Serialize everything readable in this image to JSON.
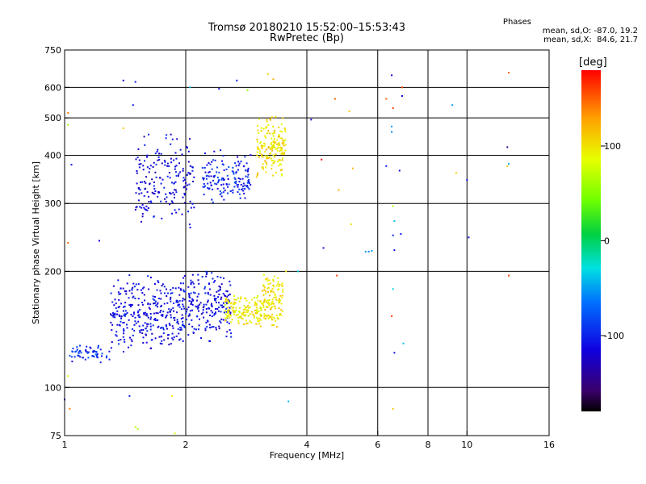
{
  "title_line1": "Tromsø 20180210 15:52:00–15:53:43",
  "title_line2": "RwPretec (Bp)",
  "stats": {
    "heading": "Phases",
    "line_o": "mean, sd,O: -87.0, 19.2",
    "line_x": "mean, sd,X:  84.6, 21.7"
  },
  "colorbar": {
    "unit": "[deg]",
    "range": [
      -180,
      180
    ],
    "ticks": [
      100,
      0,
      -100
    ],
    "tick_labels": [
      "100",
      "0",
      "-100"
    ]
  },
  "chart_data": {
    "type": "scatter",
    "title": "Tromsø 20180210 15:52:00–15:53:43",
    "subtitle": "RwPretec (Bp)",
    "xlabel": "Frequency [MHz]",
    "ylabel": "Stationary phase Virtual Height [km]",
    "x_scale": "log",
    "y_scale": "log",
    "xlim": [
      1,
      16
    ],
    "ylim": [
      75,
      750
    ],
    "x_ticks": [
      1,
      2,
      4,
      6,
      8,
      10,
      16
    ],
    "x_tick_labels": [
      "1",
      "2",
      "4",
      "6",
      "8",
      "10",
      "16"
    ],
    "y_ticks": [
      75,
      100,
      200,
      300,
      400,
      500,
      600,
      750
    ],
    "y_tick_labels": [
      "75",
      "100",
      "200",
      "300",
      "400",
      "500",
      "600",
      "750"
    ],
    "grid": true,
    "color_variable": "phase [deg]",
    "clusters": [
      {
        "f": [
          1.02,
          1.3
        ],
        "h": [
          115,
          130
        ],
        "phase": -95,
        "count": 60
      },
      {
        "f": [
          1.3,
          2.0
        ],
        "h": [
          122,
          200
        ],
        "phase": -110,
        "count": 330
      },
      {
        "f": [
          2.0,
          2.6
        ],
        "h": [
          130,
          205
        ],
        "phase": -112,
        "count": 190
      },
      {
        "f": [
          2.5,
          3.1
        ],
        "h": [
          140,
          175
        ],
        "phase": 95,
        "count": 150
      },
      {
        "f": [
          3.1,
          3.5
        ],
        "h": [
          140,
          200
        ],
        "phase": 100,
        "count": 120
      },
      {
        "f": [
          1.5,
          2.1
        ],
        "h": [
          255,
          470
        ],
        "phase": -115,
        "count": 190
      },
      {
        "f": [
          2.2,
          2.9
        ],
        "h": [
          290,
          420
        ],
        "phase": -100,
        "count": 150
      },
      {
        "f": [
          3.0,
          3.55
        ],
        "h": [
          340,
          520
        ],
        "phase": 100,
        "count": 170
      }
    ],
    "points": [
      {
        "x": 1.4,
        "y": 625,
        "phase": -115
      },
      {
        "x": 1.5,
        "y": 620,
        "phase": -110
      },
      {
        "x": 1.48,
        "y": 540,
        "phase": -105
      },
      {
        "x": 1.02,
        "y": 480,
        "phase": 60
      },
      {
        "x": 1.02,
        "y": 515,
        "phase": 140
      },
      {
        "x": 1.04,
        "y": 378,
        "phase": -110
      },
      {
        "x": 1.02,
        "y": 237,
        "phase": 150
      },
      {
        "x": 1.22,
        "y": 240,
        "phase": -115
      },
      {
        "x": 1.02,
        "y": 107,
        "phase": 80
      },
      {
        "x": 1.0,
        "y": 93,
        "phase": -100
      },
      {
        "x": 1.03,
        "y": 88,
        "phase": 140
      },
      {
        "x": 1.45,
        "y": 95,
        "phase": -100
      },
      {
        "x": 1.5,
        "y": 79,
        "phase": 70
      },
      {
        "x": 1.52,
        "y": 78,
        "phase": 60
      },
      {
        "x": 1.85,
        "y": 95,
        "phase": 90
      },
      {
        "x": 1.88,
        "y": 76,
        "phase": 85
      },
      {
        "x": 1.4,
        "y": 470,
        "phase": 110
      },
      {
        "x": 1.52,
        "y": 395,
        "phase": -100
      },
      {
        "x": 2.05,
        "y": 600,
        "phase": -40
      },
      {
        "x": 2.42,
        "y": 595,
        "phase": -110
      },
      {
        "x": 2.68,
        "y": 625,
        "phase": -100
      },
      {
        "x": 2.85,
        "y": 590,
        "phase": 50
      },
      {
        "x": 3.2,
        "y": 650,
        "phase": 110
      },
      {
        "x": 3.3,
        "y": 630,
        "phase": 120
      },
      {
        "x": 3.55,
        "y": 200,
        "phase": 100
      },
      {
        "x": 3.6,
        "y": 92,
        "phase": -40
      },
      {
        "x": 3.8,
        "y": 200,
        "phase": -40
      },
      {
        "x": 4.1,
        "y": 495,
        "phase": -120
      },
      {
        "x": 4.35,
        "y": 390,
        "phase": 180
      },
      {
        "x": 4.4,
        "y": 230,
        "phase": -110
      },
      {
        "x": 4.7,
        "y": 560,
        "phase": 150
      },
      {
        "x": 4.8,
        "y": 325,
        "phase": 120
      },
      {
        "x": 4.75,
        "y": 195,
        "phase": 160
      },
      {
        "x": 5.1,
        "y": 520,
        "phase": 110
      },
      {
        "x": 5.2,
        "y": 370,
        "phase": 120
      },
      {
        "x": 5.15,
        "y": 265,
        "phase": 100
      },
      {
        "x": 5.6,
        "y": 225,
        "phase": -50
      },
      {
        "x": 5.7,
        "y": 225,
        "phase": -60
      },
      {
        "x": 5.8,
        "y": 226,
        "phase": -50
      },
      {
        "x": 6.3,
        "y": 560,
        "phase": 150
      },
      {
        "x": 6.3,
        "y": 375,
        "phase": -100
      },
      {
        "x": 6.5,
        "y": 645,
        "phase": -120
      },
      {
        "x": 6.55,
        "y": 530,
        "phase": 160
      },
      {
        "x": 6.5,
        "y": 475,
        "phase": -50
      },
      {
        "x": 6.5,
        "y": 460,
        "phase": -60
      },
      {
        "x": 6.55,
        "y": 295,
        "phase": 70
      },
      {
        "x": 6.6,
        "y": 270,
        "phase": -40
      },
      {
        "x": 6.55,
        "y": 248,
        "phase": -100
      },
      {
        "x": 6.6,
        "y": 227,
        "phase": -110
      },
      {
        "x": 6.55,
        "y": 180,
        "phase": -30
      },
      {
        "x": 6.5,
        "y": 153,
        "phase": 160
      },
      {
        "x": 6.6,
        "y": 123,
        "phase": -110
      },
      {
        "x": 6.55,
        "y": 88,
        "phase": 110
      },
      {
        "x": 6.8,
        "y": 365,
        "phase": -110
      },
      {
        "x": 6.85,
        "y": 250,
        "phase": -110
      },
      {
        "x": 6.9,
        "y": 600,
        "phase": 160
      },
      {
        "x": 6.9,
        "y": 570,
        "phase": -110
      },
      {
        "x": 6.95,
        "y": 130,
        "phase": -40
      },
      {
        "x": 9.2,
        "y": 540,
        "phase": -50
      },
      {
        "x": 9.4,
        "y": 360,
        "phase": 110
      },
      {
        "x": 10.0,
        "y": 345,
        "phase": -110
      },
      {
        "x": 10.1,
        "y": 245,
        "phase": -110
      },
      {
        "x": 12.7,
        "y": 655,
        "phase": 150
      },
      {
        "x": 12.6,
        "y": 420,
        "phase": -150
      },
      {
        "x": 12.7,
        "y": 380,
        "phase": -50
      },
      {
        "x": 12.6,
        "y": 375,
        "phase": 110
      },
      {
        "x": 12.7,
        "y": 195,
        "phase": 160
      }
    ]
  }
}
